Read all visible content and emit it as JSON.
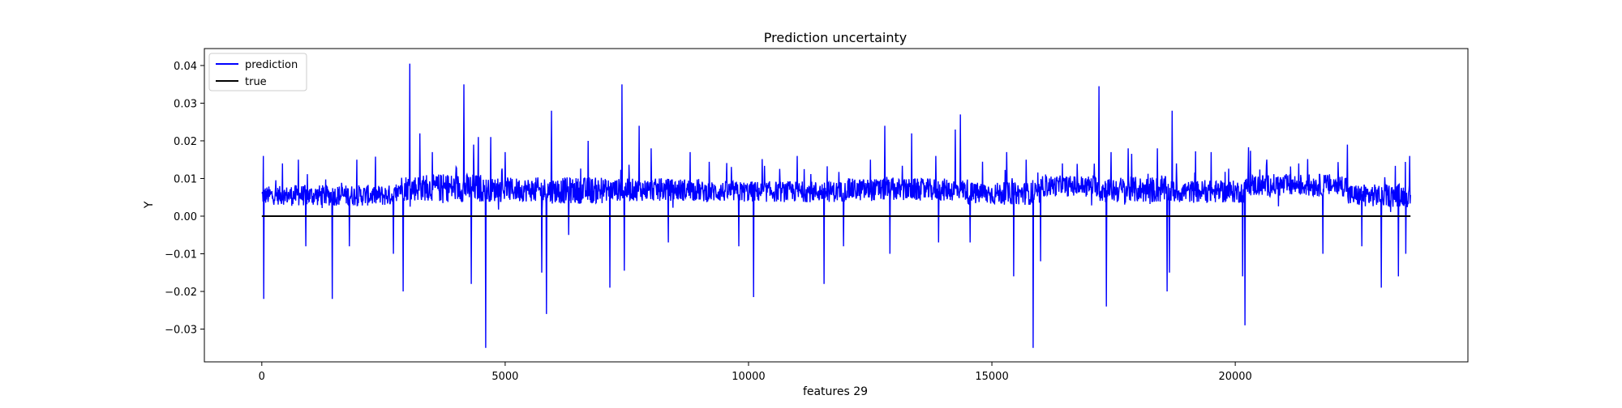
{
  "chart_data": {
    "type": "line",
    "title": "Prediction uncertainty",
    "xlabel": "features 29",
    "ylabel": "Y",
    "xlim": [
      -1180,
      24780
    ],
    "ylim": [
      -0.0387,
      0.0445
    ],
    "x_ticks": [
      0,
      5000,
      10000,
      15000,
      20000
    ],
    "x_tick_labels": [
      "0",
      "5000",
      "10000",
      "15000",
      "20000"
    ],
    "y_ticks": [
      -0.03,
      -0.02,
      -0.01,
      0.0,
      0.01,
      0.02,
      0.03,
      0.04
    ],
    "y_tick_labels": [
      "−0.03",
      "−0.02",
      "−0.01",
      "0.00",
      "0.01",
      "0.02",
      "0.03",
      "0.04"
    ],
    "grid": false,
    "legend_position": "top-left",
    "n_points": 23600,
    "series": [
      {
        "name": "prediction",
        "color": "#0000ff",
        "baseline_segments": [
          {
            "x": [
              0,
              600
            ],
            "mean": 0.0055,
            "spread": 0.0025
          },
          {
            "x": [
              600,
              2800
            ],
            "mean": 0.0055,
            "spread": 0.0028
          },
          {
            "x": [
              2800,
              3600
            ],
            "mean": 0.0075,
            "spread": 0.0035
          },
          {
            "x": [
              3600,
              4500
            ],
            "mean": 0.0075,
            "spread": 0.0038
          },
          {
            "x": [
              4500,
              5600
            ],
            "mean": 0.007,
            "spread": 0.0032
          },
          {
            "x": [
              5600,
              7000
            ],
            "mean": 0.0068,
            "spread": 0.0035
          },
          {
            "x": [
              7000,
              9000
            ],
            "mean": 0.007,
            "spread": 0.003
          },
          {
            "x": [
              9000,
              12000
            ],
            "mean": 0.0065,
            "spread": 0.0028
          },
          {
            "x": [
              12000,
              14500
            ],
            "mean": 0.007,
            "spread": 0.003
          },
          {
            "x": [
              14500,
              16000
            ],
            "mean": 0.006,
            "spread": 0.003
          },
          {
            "x": [
              16000,
              17200
            ],
            "mean": 0.008,
            "spread": 0.0028
          },
          {
            "x": [
              17200,
              18600
            ],
            "mean": 0.007,
            "spread": 0.0035
          },
          {
            "x": [
              18600,
              20200
            ],
            "mean": 0.0065,
            "spread": 0.003
          },
          {
            "x": [
              20200,
              22300
            ],
            "mean": 0.0082,
            "spread": 0.003
          },
          {
            "x": [
              22300,
              23600
            ],
            "mean": 0.0055,
            "spread": 0.003
          }
        ],
        "spikes_up": [
          [
            30,
            0.016
          ],
          [
            420,
            0.014
          ],
          [
            750,
            0.015
          ],
          [
            1450,
            0.015
          ],
          [
            1950,
            0.015
          ],
          [
            2900,
            0.022
          ],
          [
            3040,
            0.0405
          ],
          [
            3250,
            0.022
          ],
          [
            3500,
            0.017
          ],
          [
            4150,
            0.035
          ],
          [
            4350,
            0.019
          ],
          [
            4450,
            0.021
          ],
          [
            4700,
            0.021
          ],
          [
            5000,
            0.017
          ],
          [
            5850,
            0.03
          ],
          [
            5950,
            0.028
          ],
          [
            6300,
            0.018
          ],
          [
            6700,
            0.02
          ],
          [
            7400,
            0.035
          ],
          [
            7750,
            0.024
          ],
          [
            8000,
            0.018
          ],
          [
            8800,
            0.017
          ],
          [
            10100,
            0.017
          ],
          [
            11000,
            0.016
          ],
          [
            12500,
            0.015
          ],
          [
            12800,
            0.024
          ],
          [
            13350,
            0.022
          ],
          [
            13850,
            0.016
          ],
          [
            14250,
            0.023
          ],
          [
            14350,
            0.027
          ],
          [
            15300,
            0.017
          ],
          [
            15700,
            0.015
          ],
          [
            16450,
            0.014
          ],
          [
            17200,
            0.0345
          ],
          [
            17450,
            0.017
          ],
          [
            17800,
            0.018
          ],
          [
            18400,
            0.018
          ],
          [
            18700,
            0.028
          ],
          [
            19500,
            0.017
          ],
          [
            20200,
            0.025
          ],
          [
            20650,
            0.015
          ],
          [
            21300,
            0.014
          ],
          [
            22300,
            0.019
          ],
          [
            23000,
            0.014
          ]
        ],
        "spikes_down": [
          [
            40,
            -0.022
          ],
          [
            1450,
            -0.022
          ],
          [
            900,
            -0.008
          ],
          [
            1800,
            -0.008
          ],
          [
            2700,
            -0.01
          ],
          [
            2900,
            -0.02
          ],
          [
            4300,
            -0.018
          ],
          [
            4600,
            -0.035
          ],
          [
            5750,
            -0.015
          ],
          [
            5850,
            -0.026
          ],
          [
            6300,
            -0.005
          ],
          [
            7150,
            -0.019
          ],
          [
            7450,
            -0.0145
          ],
          [
            8350,
            -0.007
          ],
          [
            9800,
            -0.008
          ],
          [
            10100,
            -0.0215
          ],
          [
            11550,
            -0.018
          ],
          [
            11950,
            -0.008
          ],
          [
            12900,
            -0.01
          ],
          [
            13900,
            -0.007
          ],
          [
            14550,
            -0.007
          ],
          [
            15450,
            -0.016
          ],
          [
            15850,
            -0.035
          ],
          [
            16000,
            -0.012
          ],
          [
            17350,
            -0.024
          ],
          [
            18600,
            -0.02
          ],
          [
            18650,
            -0.015
          ],
          [
            20150,
            -0.016
          ],
          [
            20200,
            -0.029
          ],
          [
            21800,
            -0.01
          ],
          [
            22600,
            -0.008
          ],
          [
            23000,
            -0.019
          ],
          [
            23350,
            -0.016
          ],
          [
            23500,
            -0.01
          ]
        ]
      },
      {
        "name": "true",
        "color": "#000000",
        "x": [
          0,
          23600
        ],
        "y": [
          0.0,
          0.0
        ]
      }
    ]
  }
}
